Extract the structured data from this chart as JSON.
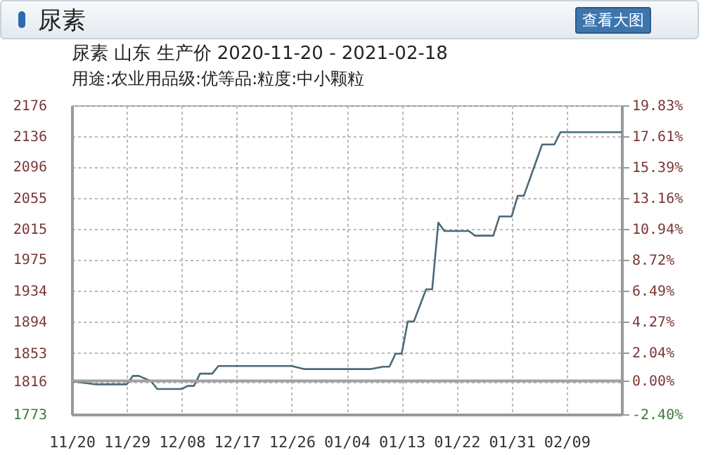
{
  "chart_data": {
    "type": "line",
    "title": "尿素 山东 生产价 2020-11-20 - 2021-02-18",
    "subtitle": "用途:农业用品级:优等品:粒度:中小颗粒",
    "annotations": [
      "尿素",
      "查看大图"
    ],
    "x": [
      "2020-11-20",
      "2020-11-24",
      "2020-11-29",
      "2020-11-30",
      "2020-12-01",
      "2020-12-03",
      "2020-12-04",
      "2020-12-08",
      "2020-12-09",
      "2020-12-10",
      "2020-12-11",
      "2020-12-13",
      "2020-12-14",
      "2020-12-26",
      "2020-12-28",
      "2021-01-08",
      "2021-01-10",
      "2021-01-11",
      "2021-01-12",
      "2021-01-13",
      "2021-01-14",
      "2021-01-15",
      "2021-01-17",
      "2021-01-18",
      "2021-01-19",
      "2021-01-20",
      "2021-01-24",
      "2021-01-25",
      "2021-01-28",
      "2021-01-29",
      "2021-01-31",
      "2021-02-01",
      "2021-02-02",
      "2021-02-05",
      "2021-02-07",
      "2021-02-08",
      "2021-02-18"
    ],
    "series": [
      {
        "color": "#4a6a78",
        "values": [
          1816,
          1812,
          1812,
          1823,
          1823,
          1816,
          1806,
          1806,
          1810,
          1810,
          1826,
          1826,
          1836,
          1836,
          1832,
          1832,
          1835,
          1835,
          1852,
          1852,
          1894,
          1894,
          1936,
          1936,
          2023,
          2012,
          2012,
          2006,
          2006,
          2031,
          2031,
          2058,
          2058,
          2125,
          2125,
          2141,
          2141
        ]
      }
    ],
    "xlim": [
      "2020-11-20",
      "2021-02-18"
    ],
    "xticks": [
      {
        "value": "2020-11-20",
        "label": "11/20"
      },
      {
        "value": "2020-11-29",
        "label": "11/29"
      },
      {
        "value": "2020-12-08",
        "label": "12/08"
      },
      {
        "value": "2020-12-17",
        "label": "12/17"
      },
      {
        "value": "2020-12-26",
        "label": "12/26"
      },
      {
        "value": "2021-01-04",
        "label": "01/04"
      },
      {
        "value": "2021-01-13",
        "label": "01/13"
      },
      {
        "value": "2021-01-22",
        "label": "01/22"
      },
      {
        "value": "2021-01-31",
        "label": "01/31"
      },
      {
        "value": "2021-02-09",
        "label": "02/09"
      }
    ],
    "ylim": [
      1773,
      2176
    ],
    "yticks": [
      1773,
      1816,
      1853,
      1894,
      1934,
      1975,
      2015,
      2055,
      2096,
      2136,
      2176
    ],
    "y2lim": [
      -2.4,
      19.83
    ],
    "y2ticks": [
      {
        "value": -2.4,
        "label": "-2.40%"
      },
      {
        "value": 0,
        "label": "0.00%"
      },
      {
        "value": 2.04,
        "label": "2.04%"
      },
      {
        "value": 4.27,
        "label": "4.27%"
      },
      {
        "value": 6.49,
        "label": "6.49%"
      },
      {
        "value": 8.72,
        "label": "8.72%"
      },
      {
        "value": 10.94,
        "label": "10.94%"
      },
      {
        "value": 13.16,
        "label": "13.16%"
      },
      {
        "value": 15.39,
        "label": "15.39%"
      },
      {
        "value": 17.61,
        "label": "17.61%"
      },
      {
        "value": 19.83,
        "label": "19.83%"
      }
    ],
    "ref_lines": [
      {
        "axis": "y2",
        "value": 0,
        "color": "#a0a0a0"
      }
    ],
    "grid": true,
    "line_style": "solid",
    "marker": "none",
    "legend": false
  }
}
